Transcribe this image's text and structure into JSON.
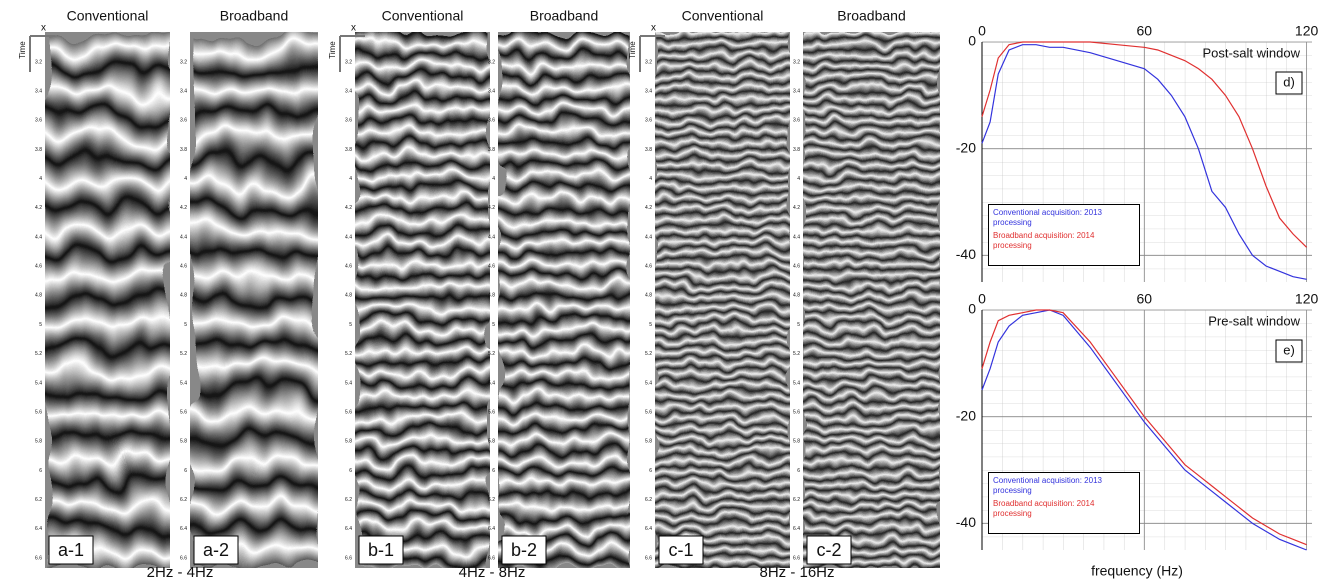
{
  "panels": [
    {
      "title": "Conventional",
      "tag": "a-1"
    },
    {
      "title": "Broadband",
      "tag": "a-2"
    },
    {
      "title": "Conventional",
      "tag": "b-1"
    },
    {
      "title": "Broadband",
      "tag": "b-2"
    },
    {
      "title": "Conventional",
      "tag": "c-1"
    },
    {
      "title": "Broadband",
      "tag": "c-2"
    }
  ],
  "band_captions": [
    "2Hz - 4Hz",
    "4Hz - 8Hz",
    "8Hz - 16Hz"
  ],
  "axis_labels": {
    "x": "x",
    "time": "Time"
  },
  "time_ticks": [
    3.2,
    3.4,
    3.6,
    3.8,
    4,
    4.2,
    4.4,
    4.6,
    4.8,
    5,
    5.2,
    5.4,
    5.6,
    5.8,
    6,
    6.2,
    6.4,
    6.6
  ],
  "chart_data": [
    {
      "type": "line",
      "title": "Post-salt window",
      "annotation": "d)",
      "x": [
        0,
        3,
        6,
        10,
        15,
        20,
        25,
        30,
        40,
        50,
        60,
        65,
        70,
        75,
        80,
        85,
        90,
        95,
        100,
        105,
        110,
        115,
        120
      ],
      "series": [
        {
          "name": "Conventional  acquisition: 2013 processing",
          "color": "#3333dd",
          "values": [
            -19,
            -15,
            -6,
            -1.5,
            -0.5,
            -0.5,
            -1,
            -1,
            -2,
            -3.5,
            -5,
            -7,
            -10,
            -14,
            -20,
            -28,
            -31,
            -36,
            -40,
            -42,
            -43,
            -44,
            -44.5
          ]
        },
        {
          "name": "Broadband acquisition: 2014 processing",
          "color": "#e03030",
          "values": [
            -14,
            -9,
            -3,
            -0.5,
            0,
            0,
            0,
            0,
            0,
            -0.5,
            -1,
            -1.5,
            -2.5,
            -3.5,
            -5,
            -7,
            -10,
            -14,
            -20,
            -27,
            -33,
            -36,
            -38.5
          ]
        }
      ],
      "xlim": [
        0,
        122
      ],
      "xticks": [
        0,
        60,
        120
      ],
      "ylim": [
        -45,
        0
      ],
      "yticks": [
        0,
        -20,
        -40
      ],
      "grid": true,
      "legend": "lower left"
    },
    {
      "type": "line",
      "title": "Pre-salt window",
      "annotation": "e)",
      "xlabel": "frequency (Hz)",
      "x": [
        0,
        3,
        6,
        10,
        15,
        20,
        25,
        30,
        40,
        50,
        60,
        65,
        70,
        75,
        80,
        85,
        90,
        95,
        100,
        105,
        110,
        115,
        120
      ],
      "series": [
        {
          "name": "Conventional  acquisition: 2013 processing",
          "color": "#3333dd",
          "values": [
            -15,
            -11,
            -6,
            -3,
            -1,
            -0.5,
            0,
            -1,
            -7,
            -14,
            -21,
            -24,
            -27,
            -30,
            -32,
            -34,
            -36,
            -38,
            -40,
            -41.5,
            -43,
            -44,
            -45
          ]
        },
        {
          "name": "Broadband acquisition: 2014 processing",
          "color": "#e03030",
          "values": [
            -11,
            -6,
            -2,
            -1,
            -0.5,
            0,
            0,
            -0.5,
            -6,
            -13,
            -20,
            -23,
            -26,
            -29,
            -31,
            -33,
            -35,
            -37,
            -39,
            -40.5,
            -42,
            -43,
            -44
          ]
        }
      ],
      "xlim": [
        0,
        122
      ],
      "xticks": [
        0,
        60,
        120
      ],
      "ylim": [
        -45,
        0
      ],
      "yticks": [
        0,
        -20,
        -40
      ],
      "grid": true,
      "legend": "lower left"
    }
  ]
}
